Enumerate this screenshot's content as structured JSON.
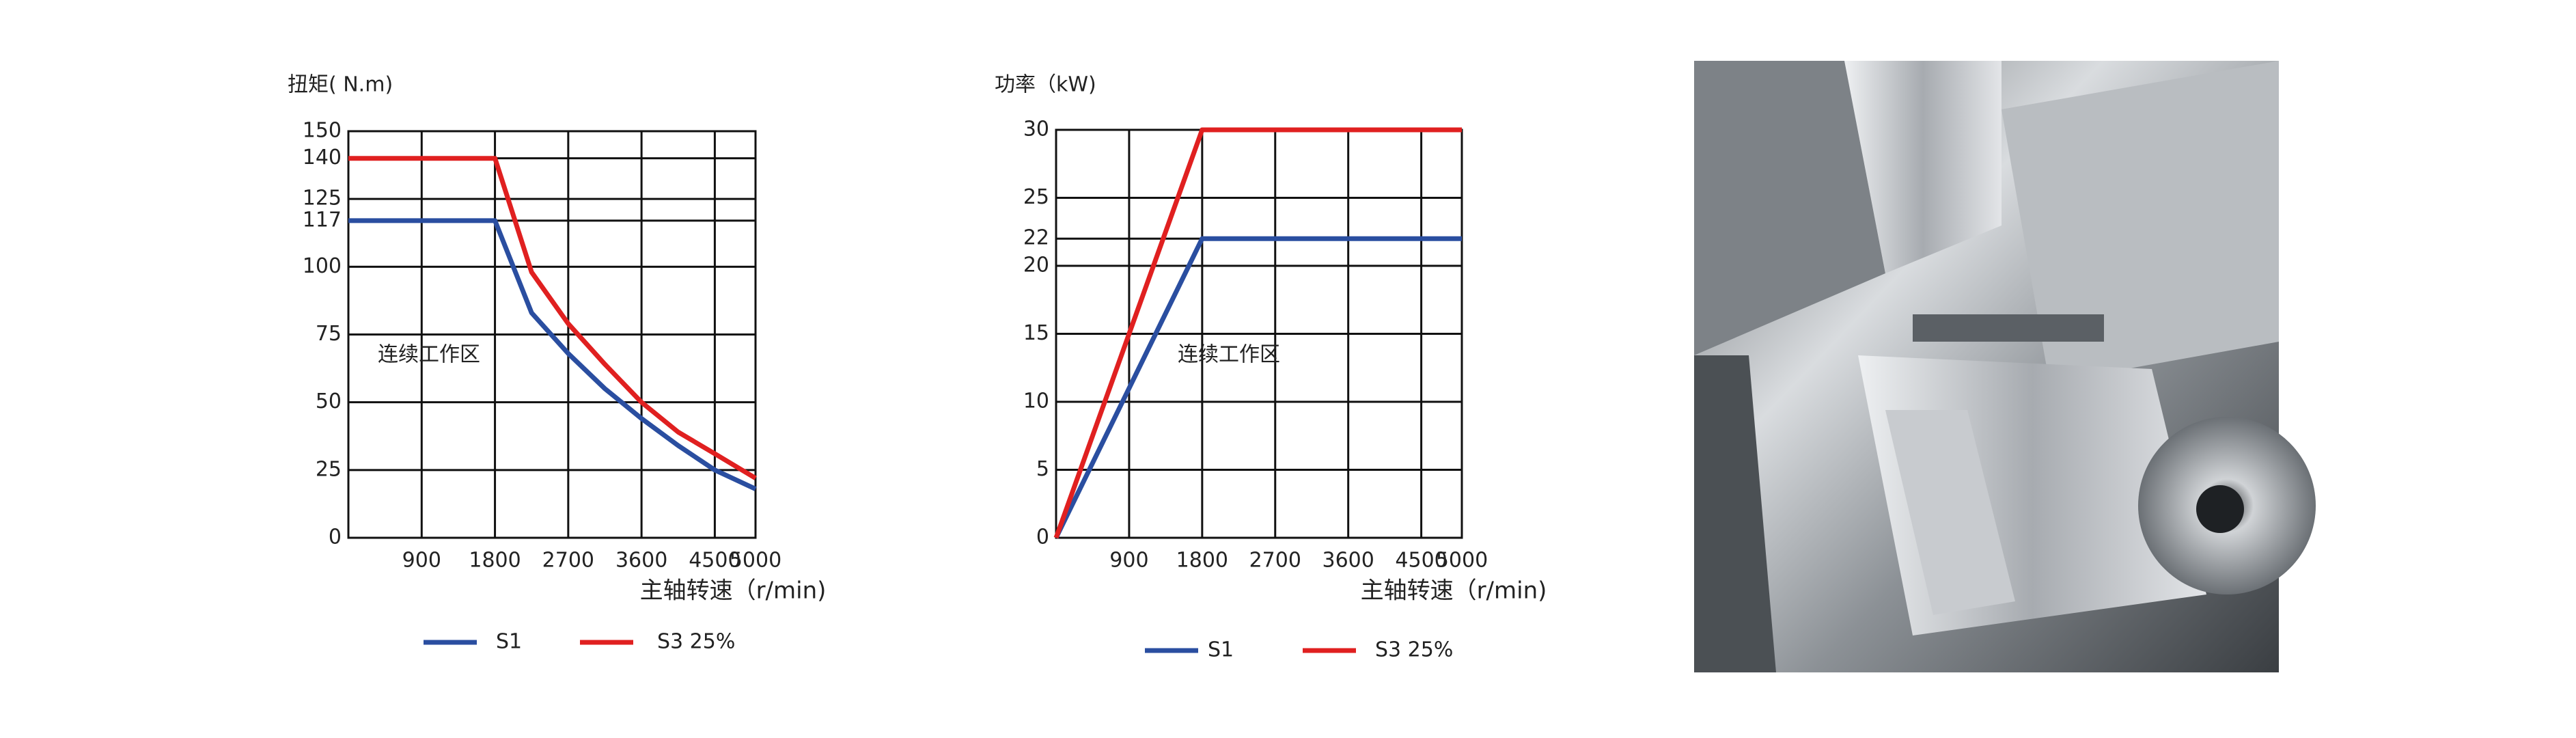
{
  "chart_data": [
    {
      "type": "line",
      "y_label": "扭矩( N.m)",
      "x_label": "主轴转速（r/min)",
      "annotation": "连续工作区",
      "x": [
        0,
        1800,
        2250,
        2700,
        3150,
        3600,
        4050,
        4500,
        5000
      ],
      "series": [
        {
          "name": "S1",
          "color": "#2a4ea0",
          "values": [
            117,
            117,
            83,
            68,
            55,
            44,
            34,
            25,
            18
          ]
        },
        {
          "name": "S3 25%",
          "color": "#e02020",
          "values": [
            140,
            140,
            98,
            79,
            64,
            50,
            39,
            31,
            22
          ]
        }
      ],
      "xlim": [
        0,
        5000
      ],
      "xticks": [
        900,
        1800,
        2700,
        3600,
        4500,
        5000
      ],
      "ylim": [
        0,
        150
      ],
      "yticks": [
        0,
        25,
        50,
        75,
        100,
        117,
        125,
        140,
        150
      ],
      "grid": true
    },
    {
      "type": "line",
      "y_label": "功率（kW)",
      "x_label": "主轴转速（r/min)",
      "annotation": "连续工作区",
      "x": [
        0,
        1800,
        5000
      ],
      "series": [
        {
          "name": "S1",
          "color": "#2a4ea0",
          "values": [
            0,
            22,
            22
          ]
        },
        {
          "name": "S3 25%",
          "color": "#e02020",
          "values": [
            0,
            30,
            30
          ]
        }
      ],
      "xlim": [
        0,
        5000
      ],
      "xticks": [
        900,
        1800,
        2700,
        3600,
        4500,
        5000
      ],
      "ylim": [
        0,
        30
      ],
      "yticks": [
        0,
        5,
        10,
        15,
        20,
        22,
        25,
        30
      ],
      "grid": true
    }
  ]
}
